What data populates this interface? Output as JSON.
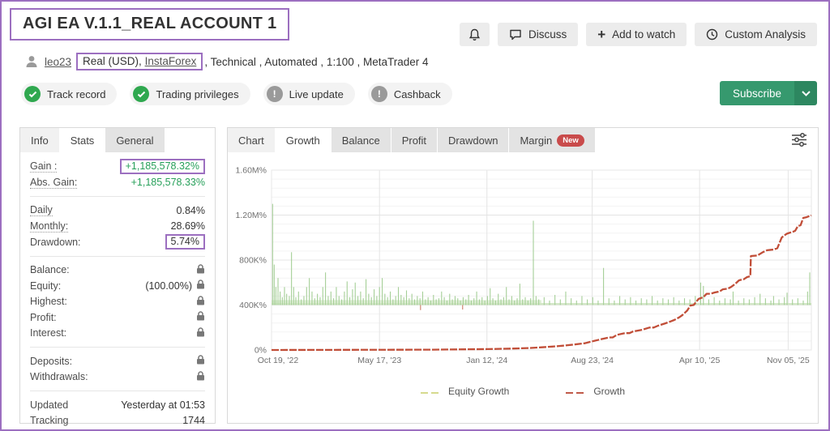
{
  "colors": {
    "annotation_purple": "#9c6fc0",
    "gain_green": "#27a05a",
    "subscribe_green": "#36996e",
    "new_badge_red": "#c94b4b",
    "equity_series": "#a5cf97",
    "equity_legend": "#d6da8e",
    "growth_series": "#c14e38"
  },
  "header": {
    "title": "AGI EA V.1.1_REAL ACCOUNT 1",
    "actions": {
      "discuss": "Discuss",
      "add_to_watch": "Add to watch",
      "custom_analysis": "Custom Analysis",
      "add_plus": "+"
    },
    "subscribe_label": "Subscribe"
  },
  "account": {
    "user": "leo23",
    "boxed_prefix": "Real (USD), ",
    "broker": "InstaForex",
    "suffix": ", Technical , Automated , 1:100 , MetaTrader 4"
  },
  "badges": [
    {
      "label": "Track record",
      "status": "ok"
    },
    {
      "label": "Trading privileges",
      "status": "ok"
    },
    {
      "label": "Live update",
      "status": "info"
    },
    {
      "label": "Cashback",
      "status": "info"
    }
  ],
  "stats_panel": {
    "tabs": [
      {
        "label": "Info"
      },
      {
        "label": "Stats"
      },
      {
        "label": "General"
      }
    ],
    "groups": [
      {
        "rows": [
          {
            "label": "Gain :",
            "value": "+1,185,578.32%"
          },
          {
            "label": "Abs. Gain:",
            "value": "+1,185,578.33%"
          }
        ]
      },
      {
        "rows": [
          {
            "label": "Daily",
            "value": "0.84%"
          },
          {
            "label": "Monthly:",
            "value": "28.69%"
          },
          {
            "label": "Drawdown:",
            "value": "5.74%"
          }
        ]
      },
      {
        "rows": [
          {
            "label": "Balance:",
            "value": ""
          },
          {
            "label": "Equity:",
            "value": "(100.00%)"
          },
          {
            "label": "Highest:",
            "value": ""
          },
          {
            "label": "Profit:",
            "value": ""
          },
          {
            "label": "Interest:",
            "value": ""
          }
        ]
      },
      {
        "rows": [
          {
            "label": "Deposits:",
            "value": ""
          },
          {
            "label": "Withdrawals:",
            "value": ""
          }
        ]
      },
      {
        "rows": [
          {
            "label": "Updated",
            "value": "Yesterday at 01:53"
          },
          {
            "label": "Tracking",
            "value": "1744"
          }
        ]
      }
    ]
  },
  "chart_panel": {
    "tabs": [
      {
        "label": "Chart"
      },
      {
        "label": "Growth"
      },
      {
        "label": "Balance"
      },
      {
        "label": "Profit"
      },
      {
        "label": "Drawdown"
      },
      {
        "label": "Margin"
      }
    ],
    "margin_badge": "New"
  },
  "chart_data": {
    "type": "line",
    "title": "Growth",
    "unit": "K% (thousand percent)",
    "ylim": [
      0,
      1600
    ],
    "grid": true,
    "legend_position": "bottom-center",
    "yticks": [
      {
        "v": 1600,
        "label": "1.60M%"
      },
      {
        "v": 1200,
        "label": "1.20M%"
      },
      {
        "v": 800,
        "label": "800K%"
      },
      {
        "v": 400,
        "label": "400K%"
      },
      {
        "v": 0,
        "label": "0%"
      }
    ],
    "xticks": [
      {
        "f": 0.012,
        "label": "Oct 19, '22"
      },
      {
        "f": 0.2,
        "label": "May 17, '23"
      },
      {
        "f": 0.399,
        "label": "Jan 12, '24"
      },
      {
        "f": 0.594,
        "label": "Aug 23, '24"
      },
      {
        "f": 0.793,
        "label": "Apr 10, '25"
      },
      {
        "f": 0.957,
        "label": "Nov 05, '25"
      }
    ],
    "series": [
      {
        "name": "Equity Growth",
        "type": "spikes",
        "color": "#a5cf97",
        "legend_color": "#d6da8e",
        "base": 400,
        "band": {
          "from": 400,
          "to": 418,
          "color": "#cfe6c2"
        },
        "band_left": {
          "from": 400,
          "to": 444,
          "to_f": 0.5,
          "color": "#cfe6c2"
        },
        "spikes": [
          [
            0.002,
            1300
          ],
          [
            0.005,
            760
          ],
          [
            0.008,
            560
          ],
          [
            0.012,
            640
          ],
          [
            0.016,
            520
          ],
          [
            0.02,
            470
          ],
          [
            0.024,
            560
          ],
          [
            0.028,
            500
          ],
          [
            0.033,
            480
          ],
          [
            0.037,
            870
          ],
          [
            0.041,
            560
          ],
          [
            0.045,
            470
          ],
          [
            0.05,
            520
          ],
          [
            0.055,
            450
          ],
          [
            0.06,
            480
          ],
          [
            0.065,
            560
          ],
          [
            0.07,
            640
          ],
          [
            0.075,
            520
          ],
          [
            0.08,
            460
          ],
          [
            0.085,
            500
          ],
          [
            0.09,
            470
          ],
          [
            0.095,
            560
          ],
          [
            0.1,
            690
          ],
          [
            0.105,
            480
          ],
          [
            0.11,
            520
          ],
          [
            0.115,
            460
          ],
          [
            0.12,
            560
          ],
          [
            0.125,
            480
          ],
          [
            0.13,
            450
          ],
          [
            0.135,
            520
          ],
          [
            0.14,
            610
          ],
          [
            0.145,
            470
          ],
          [
            0.15,
            540
          ],
          [
            0.155,
            600
          ],
          [
            0.16,
            480
          ],
          [
            0.165,
            520
          ],
          [
            0.17,
            460
          ],
          [
            0.175,
            630
          ],
          [
            0.18,
            500
          ],
          [
            0.185,
            470
          ],
          [
            0.19,
            540
          ],
          [
            0.195,
            480
          ],
          [
            0.2,
            560
          ],
          [
            0.205,
            640
          ],
          [
            0.21,
            500
          ],
          [
            0.215,
            470
          ],
          [
            0.22,
            520
          ],
          [
            0.225,
            450
          ],
          [
            0.23,
            480
          ],
          [
            0.235,
            560
          ],
          [
            0.24,
            490
          ],
          [
            0.245,
            470
          ],
          [
            0.25,
            530
          ],
          [
            0.255,
            460
          ],
          [
            0.26,
            500
          ],
          [
            0.265,
            450
          ],
          [
            0.27,
            480
          ],
          [
            0.275,
            460
          ],
          [
            0.28,
            520
          ],
          [
            0.285,
            450
          ],
          [
            0.29,
            470
          ],
          [
            0.295,
            440
          ],
          [
            0.3,
            490
          ],
          [
            0.305,
            450
          ],
          [
            0.31,
            460
          ],
          [
            0.315,
            520
          ],
          [
            0.32,
            470
          ],
          [
            0.325,
            440
          ],
          [
            0.33,
            500
          ],
          [
            0.335,
            450
          ],
          [
            0.34,
            480
          ],
          [
            0.345,
            460
          ],
          [
            0.35,
            440
          ],
          [
            0.355,
            470
          ],
          [
            0.36,
            450
          ],
          [
            0.365,
            490
          ],
          [
            0.37,
            440
          ],
          [
            0.375,
            460
          ],
          [
            0.38,
            520
          ],
          [
            0.385,
            450
          ],
          [
            0.39,
            470
          ],
          [
            0.395,
            440
          ],
          [
            0.4,
            480
          ],
          [
            0.405,
            550
          ],
          [
            0.41,
            460
          ],
          [
            0.415,
            440
          ],
          [
            0.42,
            500
          ],
          [
            0.425,
            450
          ],
          [
            0.43,
            470
          ],
          [
            0.435,
            560
          ],
          [
            0.44,
            450
          ],
          [
            0.445,
            480
          ],
          [
            0.45,
            440
          ],
          [
            0.455,
            460
          ],
          [
            0.46,
            590
          ],
          [
            0.465,
            450
          ],
          [
            0.47,
            470
          ],
          [
            0.475,
            440
          ],
          [
            0.48,
            460
          ],
          [
            0.485,
            1150
          ],
          [
            0.49,
            480
          ],
          [
            0.495,
            450
          ],
          [
            0.505,
            470
          ],
          [
            0.515,
            440
          ],
          [
            0.525,
            490
          ],
          [
            0.535,
            450
          ],
          [
            0.545,
            520
          ],
          [
            0.555,
            460
          ],
          [
            0.565,
            440
          ],
          [
            0.575,
            480
          ],
          [
            0.585,
            450
          ],
          [
            0.595,
            470
          ],
          [
            0.605,
            440
          ],
          [
            0.615,
            730
          ],
          [
            0.625,
            460
          ],
          [
            0.635,
            440
          ],
          [
            0.645,
            480
          ],
          [
            0.655,
            450
          ],
          [
            0.665,
            470
          ],
          [
            0.675,
            440
          ],
          [
            0.685,
            460
          ],
          [
            0.695,
            450
          ],
          [
            0.705,
            480
          ],
          [
            0.715,
            440
          ],
          [
            0.725,
            460
          ],
          [
            0.735,
            450
          ],
          [
            0.745,
            470
          ],
          [
            0.755,
            440
          ],
          [
            0.765,
            460
          ],
          [
            0.775,
            450
          ],
          [
            0.785,
            480
          ],
          [
            0.795,
            600
          ],
          [
            0.8,
            570
          ],
          [
            0.81,
            450
          ],
          [
            0.82,
            470
          ],
          [
            0.83,
            440
          ],
          [
            0.84,
            460
          ],
          [
            0.85,
            450
          ],
          [
            0.855,
            520
          ],
          [
            0.865,
            440
          ],
          [
            0.875,
            460
          ],
          [
            0.885,
            450
          ],
          [
            0.895,
            470
          ],
          [
            0.905,
            500
          ],
          [
            0.915,
            460
          ],
          [
            0.925,
            440
          ],
          [
            0.93,
            480
          ],
          [
            0.94,
            450
          ],
          [
            0.95,
            470
          ],
          [
            0.955,
            510
          ],
          [
            0.965,
            450
          ],
          [
            0.975,
            460
          ],
          [
            0.985,
            440
          ],
          [
            0.993,
            520
          ],
          [
            0.997,
            690
          ]
        ],
        "dips": [
          [
            0.276,
            355
          ],
          [
            0.354,
            360
          ]
        ]
      },
      {
        "name": "Growth",
        "type": "line",
        "color": "#c14e38",
        "legend_color": "#c05a49",
        "points": [
          [
            0,
            0
          ],
          [
            0.3,
            3
          ],
          [
            0.4,
            8
          ],
          [
            0.45,
            13
          ],
          [
            0.48,
            18
          ],
          [
            0.5,
            24
          ],
          [
            0.52,
            30
          ],
          [
            0.54,
            38
          ],
          [
            0.56,
            48
          ],
          [
            0.58,
            60
          ],
          [
            0.597,
            80
          ],
          [
            0.61,
            95
          ],
          [
            0.625,
            112
          ],
          [
            0.632,
            112
          ],
          [
            0.64,
            135
          ],
          [
            0.655,
            150
          ],
          [
            0.663,
            150
          ],
          [
            0.67,
            165
          ],
          [
            0.687,
            180
          ],
          [
            0.7,
            200
          ],
          [
            0.708,
            200
          ],
          [
            0.716,
            216
          ],
          [
            0.73,
            238
          ],
          [
            0.74,
            255
          ],
          [
            0.746,
            267
          ],
          [
            0.755,
            290
          ],
          [
            0.761,
            310
          ],
          [
            0.77,
            350
          ],
          [
            0.776,
            396
          ],
          [
            0.782,
            400
          ],
          [
            0.791,
            454
          ],
          [
            0.8,
            470
          ],
          [
            0.806,
            500
          ],
          [
            0.813,
            500
          ],
          [
            0.821,
            512
          ],
          [
            0.83,
            520
          ],
          [
            0.836,
            540
          ],
          [
            0.845,
            545
          ],
          [
            0.851,
            560
          ],
          [
            0.858,
            584
          ],
          [
            0.866,
            620
          ],
          [
            0.875,
            630
          ],
          [
            0.881,
            649
          ],
          [
            0.887,
            656
          ],
          [
            0.888,
            836
          ],
          [
            0.9,
            840
          ],
          [
            0.91,
            870
          ],
          [
            0.918,
            887
          ],
          [
            0.93,
            894
          ],
          [
            0.937,
            905
          ],
          [
            0.945,
            1000
          ],
          [
            0.95,
            1020
          ],
          [
            0.955,
            1035
          ],
          [
            0.966,
            1052
          ],
          [
            0.97,
            1060
          ],
          [
            0.975,
            1103
          ],
          [
            0.98,
            1110
          ],
          [
            0.985,
            1175
          ],
          [
            0.99,
            1180
          ],
          [
            1.0,
            1197
          ]
        ]
      }
    ]
  }
}
